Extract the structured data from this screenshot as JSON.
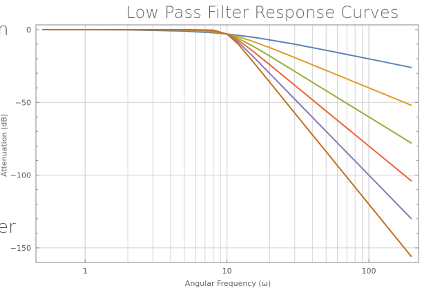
{
  "left_fragments": [
    "n",
    "er"
  ],
  "chart_data": {
    "type": "line",
    "title": "Low Pass Filter Response Curves",
    "xlabel": "Angular Frequency (ω)",
    "ylabel": "Attenuation (dB)",
    "x_scale": "log",
    "xlim": [
      0.45,
      224
    ],
    "ylim": [
      -160,
      3.3
    ],
    "x_ticks": [
      1,
      10,
      100
    ],
    "x_tick_labels": [
      "1",
      "10",
      "100"
    ],
    "y_ticks": [
      0,
      -50,
      -100,
      -150
    ],
    "y_tick_labels": [
      "0",
      "−50",
      "−100",
      "−150"
    ],
    "grid": true,
    "legend": "none",
    "x": [
      0.5,
      1,
      2,
      5,
      8,
      10,
      12,
      15,
      20,
      30,
      50,
      100,
      200
    ],
    "series": [
      {
        "color": "#5E81B5",
        "values": [
          -0.01,
          -0.04,
          -0.17,
          -0.97,
          -2.15,
          -3.01,
          -3.87,
          -5.12,
          -6.99,
          -10.0,
          -14.15,
          -20.04,
          -26.02
        ]
      },
      {
        "color": "#E19C24",
        "values": [
          0,
          0,
          -0.01,
          -0.26,
          -1.48,
          -3.01,
          -4.88,
          -7.83,
          -12.3,
          -19.14,
          -27.96,
          -40.0,
          -52.04
        ]
      },
      {
        "color": "#8FB032",
        "values": [
          0,
          0,
          0,
          -0.07,
          -1.01,
          -3.01,
          -6.0,
          -10.93,
          -18.13,
          -28.63,
          -41.94,
          -60.0,
          -78.06
        ]
      },
      {
        "color": "#EB6235",
        "values": [
          0,
          0,
          0,
          -0.02,
          -0.67,
          -3.01,
          -7.24,
          -14.25,
          -24.1,
          -38.17,
          -55.92,
          -80.0,
          -104.08
        ]
      },
      {
        "color": "#8778B3",
        "values": [
          0,
          0,
          0,
          0,
          -0.44,
          -3.01,
          -8.57,
          -17.68,
          -30.11,
          -47.71,
          -69.9,
          -100.0,
          -130.1
        ]
      },
      {
        "color": "#C56E1A",
        "values": [
          0,
          0,
          0,
          0,
          -0.29,
          -3.01,
          -9.96,
          -21.16,
          -36.12,
          -57.25,
          -83.88,
          -120.0,
          -156.12
        ]
      }
    ]
  }
}
